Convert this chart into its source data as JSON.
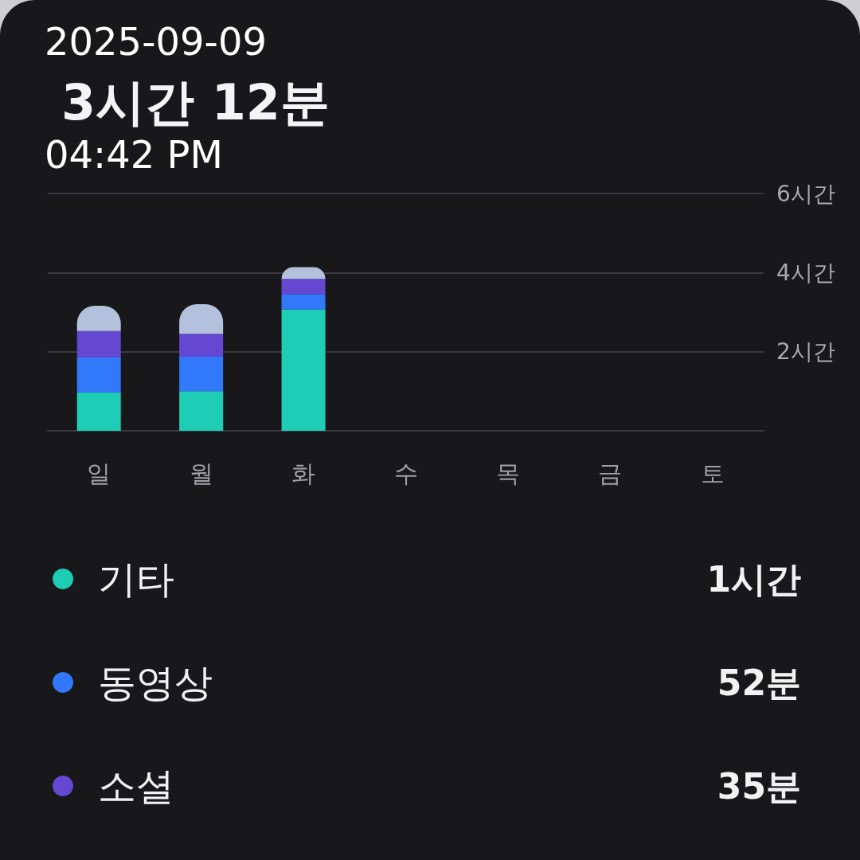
{
  "chart_data": {
    "type": "bar",
    "title": "3시간 12분",
    "annotations": [
      "2025-09-09",
      "04:42 PM",
      "1시간",
      "52분",
      "35분"
    ],
    "categories": [
      "일",
      "월",
      "화",
      "수",
      "목",
      "금",
      "토"
    ],
    "series": [
      {
        "name": "기타",
        "color": "#1ecdb5",
        "values": [
          0.97,
          1,
          3.07,
          null,
          null,
          null,
          null
        ]
      },
      {
        "name": "동영상",
        "color": "#3178fa",
        "values": [
          0.88,
          0.87,
          0.39,
          null,
          null,
          null,
          null
        ]
      },
      {
        "name": "소셜",
        "color": "#6548d2",
        "values": [
          0.67,
          0.58,
          0.38,
          null,
          null,
          null,
          null
        ]
      },
      {
        "color": "#b3c1dc",
        "values": [
          0.64,
          0.75,
          0.3,
          null,
          null,
          null,
          null
        ]
      }
    ],
    "stacked": true,
    "ylim": [
      0,
      6
    ],
    "yticks": [
      {
        "value": 0,
        "label": null
      },
      {
        "value": 2,
        "label": "2시간"
      },
      {
        "value": 4,
        "label": "4시간"
      },
      {
        "value": 6,
        "label": "6시간"
      }
    ],
    "grid": "y",
    "legend": "bottom left"
  }
}
